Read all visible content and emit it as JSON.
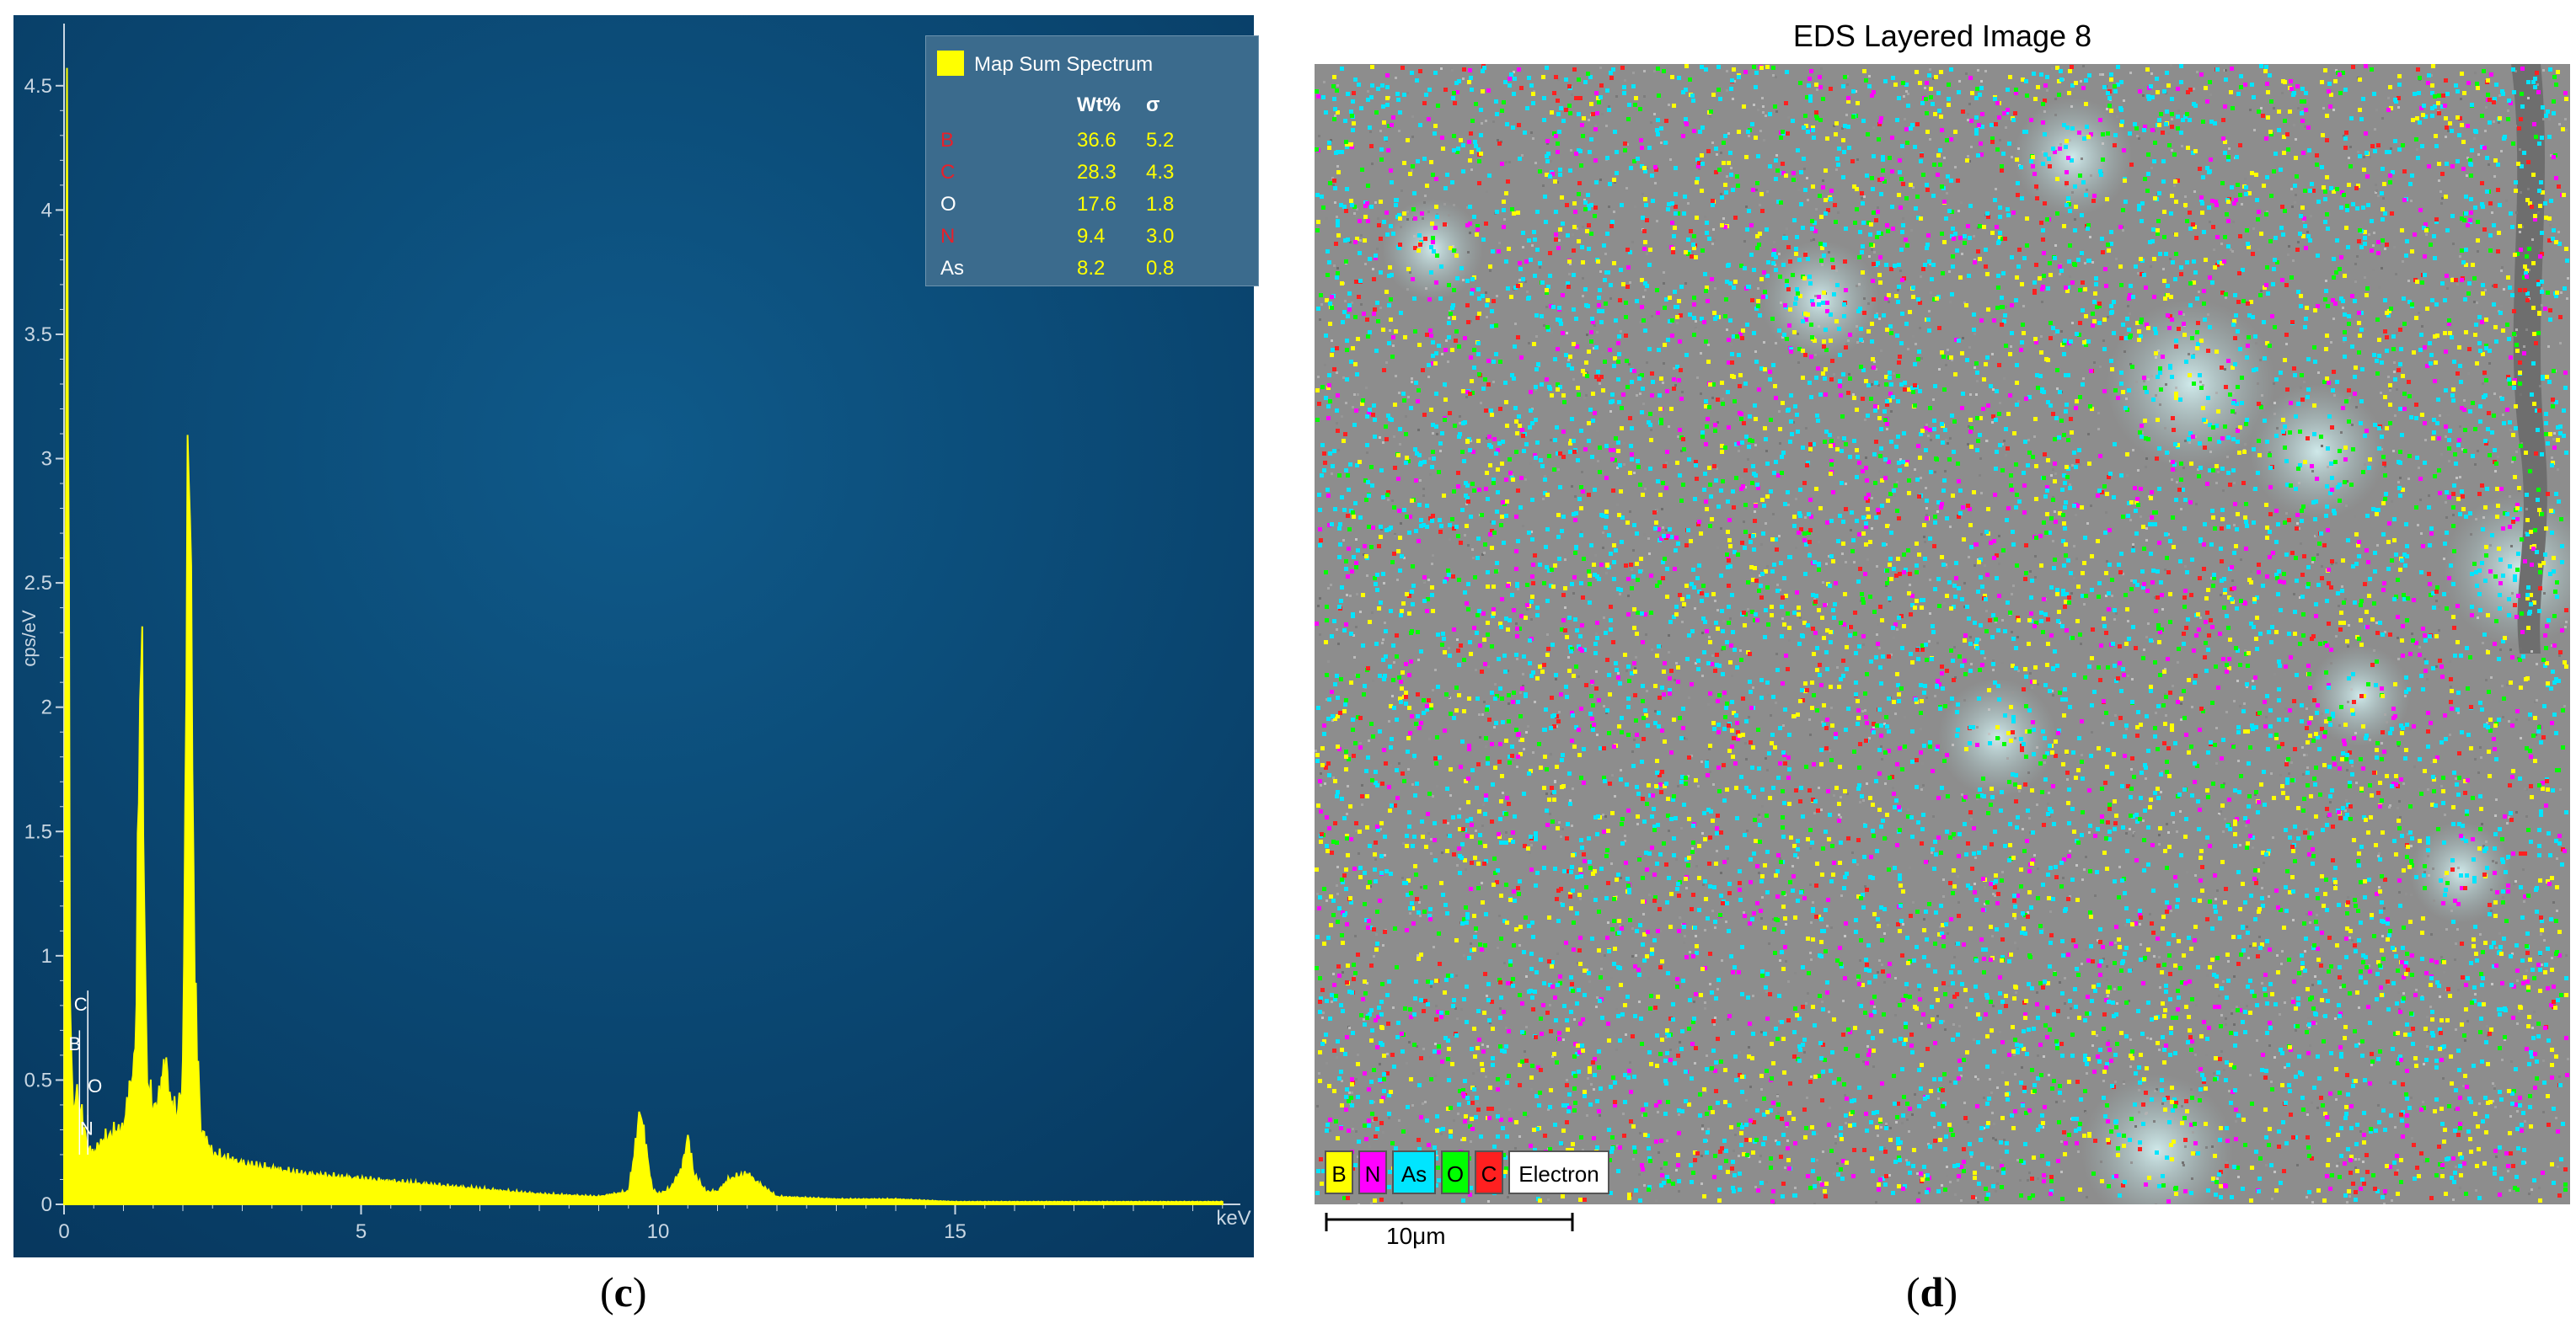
{
  "chart_data": {
    "type": "line",
    "title": "",
    "xlabel": "keV",
    "ylabel": "cps/eV",
    "xlim": [
      0,
      20
    ],
    "ylim": [
      0,
      4.75
    ],
    "x_ticks": [
      "0",
      "5",
      "10",
      "15"
    ],
    "y_ticks": [
      "0",
      "0.5",
      "1",
      "1.5",
      "2",
      "2.5",
      "3",
      "3.5",
      "4",
      "4.5"
    ],
    "series": [
      {
        "name": "Map Sum Spectrum",
        "color": "#ffff00",
        "x": [
          0.0,
          0.05,
          0.1,
          0.15,
          0.2,
          0.3,
          0.4,
          0.5,
          0.6,
          0.8,
          1.0,
          1.1,
          1.2,
          1.3,
          1.35,
          1.4,
          1.5,
          1.6,
          1.7,
          1.8,
          1.9,
          2.0,
          2.1,
          2.2,
          2.3,
          2.5,
          3.0,
          4.0,
          5.0,
          6.0,
          7.0,
          8.0,
          9.0,
          9.5,
          9.6,
          9.7,
          9.8,
          9.9,
          10.0,
          10.2,
          10.4,
          10.5,
          10.6,
          10.8,
          11.0,
          11.2,
          11.5,
          11.7,
          12.0,
          13.0,
          14.0,
          15.0,
          17.0,
          19.5
        ],
        "values": [
          0.0,
          4.7,
          0.9,
          0.35,
          0.45,
          0.35,
          0.22,
          0.2,
          0.24,
          0.28,
          0.3,
          0.45,
          0.6,
          2.38,
          1.2,
          0.5,
          0.38,
          0.42,
          0.58,
          0.4,
          0.36,
          0.5,
          3.28,
          0.9,
          0.3,
          0.2,
          0.16,
          0.12,
          0.1,
          0.08,
          0.06,
          0.04,
          0.03,
          0.05,
          0.2,
          0.38,
          0.22,
          0.06,
          0.04,
          0.06,
          0.14,
          0.27,
          0.12,
          0.05,
          0.05,
          0.1,
          0.12,
          0.08,
          0.03,
          0.02,
          0.02,
          0.01,
          0.01,
          0.01
        ]
      }
    ],
    "peak_labels": [
      "C",
      "B",
      "O",
      "N"
    ],
    "grid": false,
    "legend_placement": "top-right"
  },
  "spectrum_table": {
    "header": [
      "",
      "Wt%",
      "σ"
    ],
    "rows": [
      {
        "element": "B",
        "wt": "36.6",
        "sigma": "5.2",
        "color": "#e8202a"
      },
      {
        "element": "C",
        "wt": "28.3",
        "sigma": "4.3",
        "color": "#e8202a"
      },
      {
        "element": "O",
        "wt": "17.6",
        "sigma": "1.8",
        "color": "#ffffff"
      },
      {
        "element": "N",
        "wt": "9.4",
        "sigma": "3.0",
        "color": "#e8202a"
      },
      {
        "element": "As",
        "wt": "8.2",
        "sigma": "0.8",
        "color": "#ffffff"
      }
    ]
  },
  "eds_image": {
    "title": "EDS Layered Image 8",
    "elements": [
      {
        "label": "B",
        "color": "#ffff00"
      },
      {
        "label": "N",
        "color": "#ff00ff"
      },
      {
        "label": "As",
        "color": "#00e5ff"
      },
      {
        "label": "O",
        "color": "#00ff00"
      },
      {
        "label": "C",
        "color": "#ff2020"
      },
      {
        "label": "Electron",
        "color": "#ffffff"
      }
    ],
    "scalebar_label": "10μm"
  },
  "captions": {
    "c": "c",
    "d": "d"
  },
  "colors": {
    "spectrum_bg_top": "#0a4a74",
    "spectrum_bg_bottom": "#083a63",
    "axis": "#c8d6e2",
    "trace": "#ffff00",
    "sem_gray": "#8f8f8f"
  }
}
